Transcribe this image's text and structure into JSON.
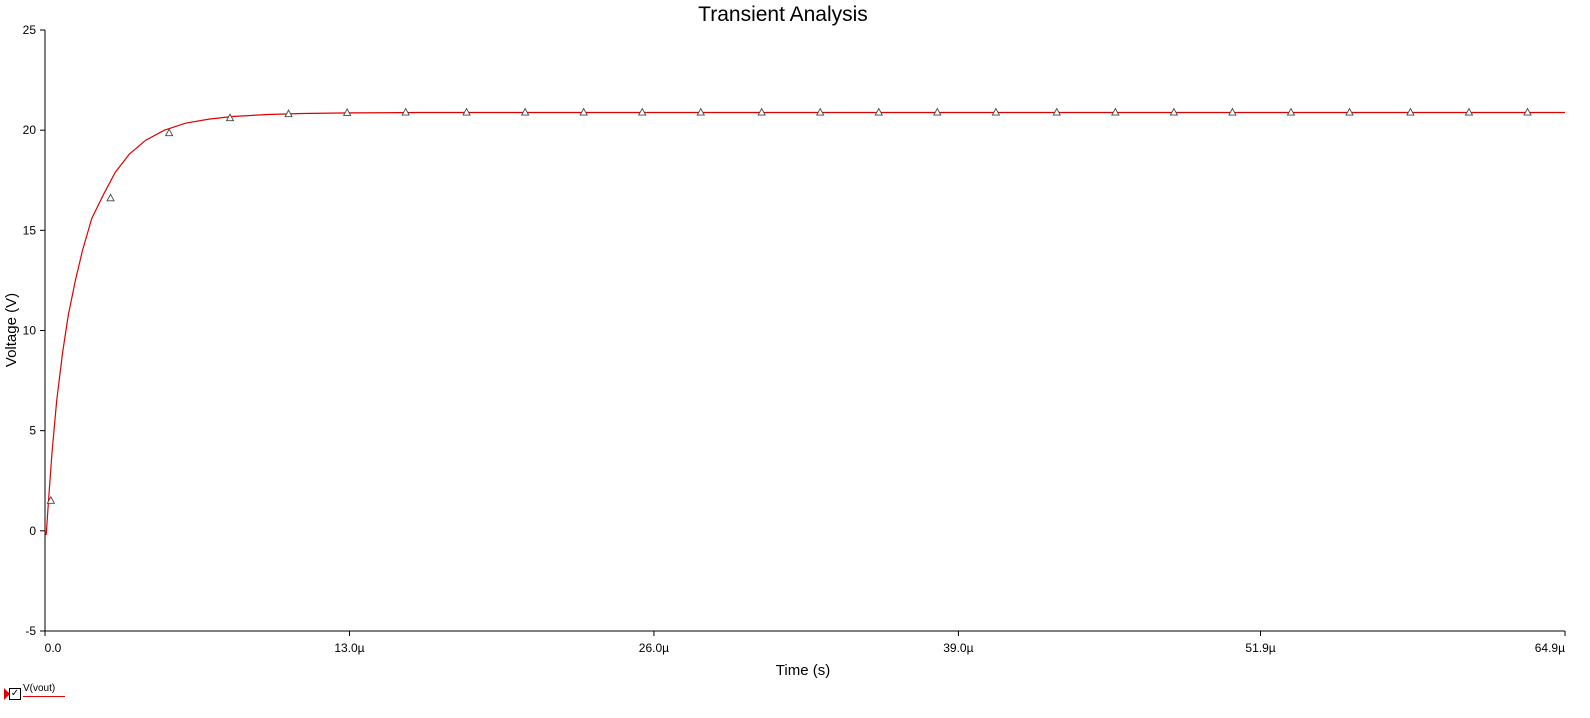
{
  "chart_data": {
    "type": "line",
    "title": "Transient Analysis",
    "xlabel": "Time (s)",
    "ylabel": "Voltage (V)",
    "xlim": [
      0,
      64.9
    ],
    "ylim": [
      -5,
      25
    ],
    "x_unit": "µs",
    "x_tick_values": [
      0,
      13.0,
      26.0,
      39.0,
      51.9,
      64.9
    ],
    "x_tick_labels": [
      "0.0",
      "13.0µ",
      "26.0µ",
      "39.0µ",
      "51.9µ",
      "64.9µ"
    ],
    "y_ticks": [
      -5,
      0,
      5,
      10,
      15,
      20,
      25
    ],
    "y_tick_labels": [
      "-5",
      "0",
      "5",
      "10",
      "15",
      "20",
      "25"
    ],
    "grid": false,
    "legend_position": "bottom-left",
    "series": [
      {
        "name": "V(vout)",
        "color": "#e00000",
        "marker": "triangle",
        "x": [
          0,
          0.05,
          0.15,
          0.3,
          0.5,
          0.75,
          1.0,
          1.3,
          1.6,
          2.0,
          2.5,
          3.0,
          3.6,
          4.3,
          5.1,
          6.0,
          7.0,
          8.0,
          9.5,
          11.0,
          13.0,
          16.0,
          20.0,
          26.0,
          32.0,
          39.0,
          45.0,
          51.9,
          58.0,
          64.9
        ],
        "y": [
          0.0,
          -0.2,
          1.5,
          3.9,
          6.5,
          8.9,
          10.8,
          12.5,
          14.0,
          15.6,
          16.8,
          17.9,
          18.8,
          19.5,
          20.0,
          20.35,
          20.55,
          20.68,
          20.78,
          20.83,
          20.86,
          20.88,
          20.88,
          20.88,
          20.88,
          20.88,
          20.88,
          20.88,
          20.88,
          20.88
        ]
      }
    ],
    "marker_points": {
      "x": [
        0.25,
        2.8,
        5.3,
        7.9,
        10.4,
        12.9,
        15.4,
        18.0,
        20.5,
        23.0,
        25.5,
        28.0,
        30.6,
        33.1,
        35.6,
        38.1,
        40.6,
        43.2,
        45.7,
        48.2,
        50.7,
        53.2,
        55.7,
        58.3,
        60.8,
        63.3
      ],
      "y": [
        1.5,
        16.6,
        19.85,
        20.6,
        20.8,
        20.86,
        20.88,
        20.88,
        20.88,
        20.88,
        20.88,
        20.88,
        20.88,
        20.88,
        20.88,
        20.88,
        20.88,
        20.88,
        20.88,
        20.88,
        20.88,
        20.88,
        20.88,
        20.88,
        20.88,
        20.88
      ]
    }
  },
  "legend": {
    "entry_label": "V(vout)",
    "checked": true
  }
}
